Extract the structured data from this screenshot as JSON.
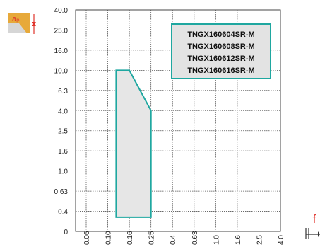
{
  "chart_data": {
    "type": "area",
    "title": "",
    "xlabel": "f",
    "ylabel": "",
    "x_ticks": [
      "0.06",
      "0.10",
      "0.16",
      "0.25",
      "0.4",
      "0.63",
      "1.0",
      "1.6",
      "2.5",
      "4.0"
    ],
    "y_ticks": [
      "0",
      "0.4",
      "0.63",
      "1.0",
      "1.6",
      "2.5",
      "4.0",
      "6.3",
      "10.0",
      "16.0",
      "25.0",
      "40.0"
    ],
    "grid": true,
    "legend": {
      "placement": "top-right",
      "entries": [
        "TNGX160604SR-M",
        "TNGX160608SR-M",
        "TNGX160612SR-M",
        "TNGX160616SR-M"
      ]
    },
    "series": [
      {
        "region": [
          {
            "f": 0.12,
            "ap": 0.35
          },
          {
            "f": 0.12,
            "ap": 10.0
          },
          {
            "f": 0.16,
            "ap": 10.0
          },
          {
            "f": 0.25,
            "ap": 4.0
          },
          {
            "f": 0.25,
            "ap": 0.35
          }
        ]
      }
    ],
    "colors": {
      "region_stroke": "#1fa7a0",
      "region_fill": "#e6e6e6",
      "legend_border": "#1fa7a0",
      "legend_fill": "#e3e3e3",
      "accent": "#e0332b",
      "icon_fill": "#e7a93a"
    }
  },
  "axis_labels": {
    "x": "f",
    "y_icon_text": "aₚ"
  }
}
